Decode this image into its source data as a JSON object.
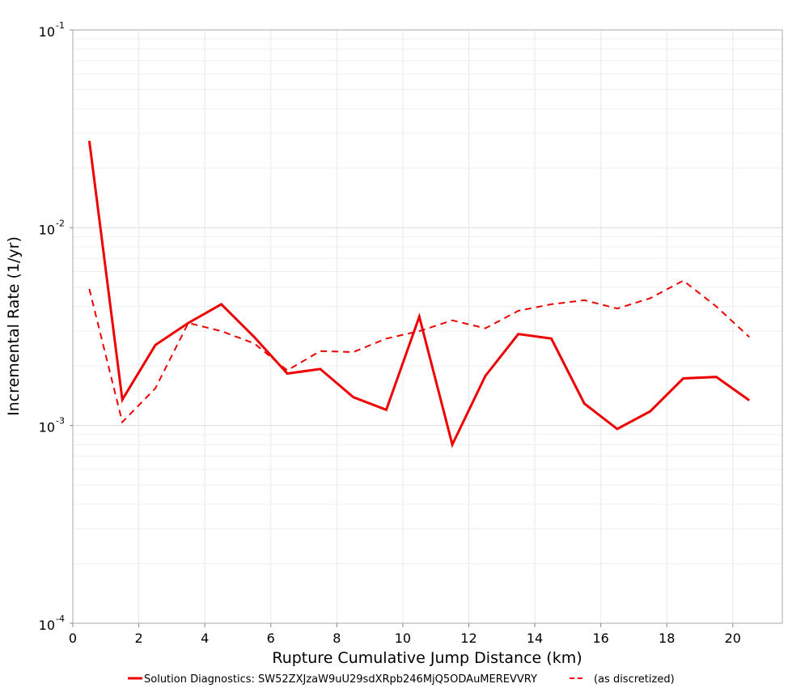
{
  "chart_data": {
    "type": "line",
    "xlabel": "Rupture Cumulative Jump Distance (km)",
    "ylabel": "Incremental Rate (1/yr)",
    "xlim": [
      0,
      21.5
    ],
    "x_ticks": [
      0,
      2,
      4,
      6,
      8,
      10,
      12,
      14,
      16,
      18,
      20
    ],
    "ylim": [
      0.0001,
      0.1
    ],
    "y_scale": "log",
    "y_ticks": [
      {
        "base": "10",
        "exp": "-4",
        "value": 0.0001
      },
      {
        "base": "10",
        "exp": "-3",
        "value": 0.001
      },
      {
        "base": "10",
        "exp": "-2",
        "value": 0.01
      },
      {
        "base": "10",
        "exp": "-1",
        "value": 0.1
      }
    ],
    "grid": true,
    "legend_position": "bottom",
    "x": [
      0.5,
      1.5,
      2.5,
      3.5,
      4.5,
      5.5,
      6.5,
      7.5,
      8.5,
      9.5,
      10.5,
      11.5,
      12.5,
      13.5,
      14.5,
      15.5,
      16.5,
      17.5,
      18.5,
      19.5,
      20.5
    ],
    "series": [
      {
        "name": "Solution Diagnostics: SW52ZXJzaW9uU29sdXRpb246MjQ5ODAuMEREVVRY",
        "color": "#ee0000",
        "style": "solid",
        "values": [
          0.0275,
          0.00135,
          0.00255,
          0.0033,
          0.0041,
          0.0028,
          0.00183,
          0.00193,
          0.00139,
          0.0012,
          0.00355,
          0.0008,
          0.00178,
          0.0029,
          0.00275,
          0.00129,
          0.00096,
          0.00118,
          0.00173,
          0.00176,
          0.00134
        ]
      },
      {
        "name": "(as discretized)",
        "color": "#ee0000",
        "style": "dashed",
        "values": [
          0.0049,
          0.00104,
          0.00154,
          0.0033,
          0.003,
          0.0026,
          0.0019,
          0.00238,
          0.00235,
          0.00275,
          0.003,
          0.0034,
          0.0031,
          0.0038,
          0.0041,
          0.0043,
          0.0039,
          0.0044,
          0.0054,
          0.004,
          0.0028
        ]
      }
    ]
  }
}
